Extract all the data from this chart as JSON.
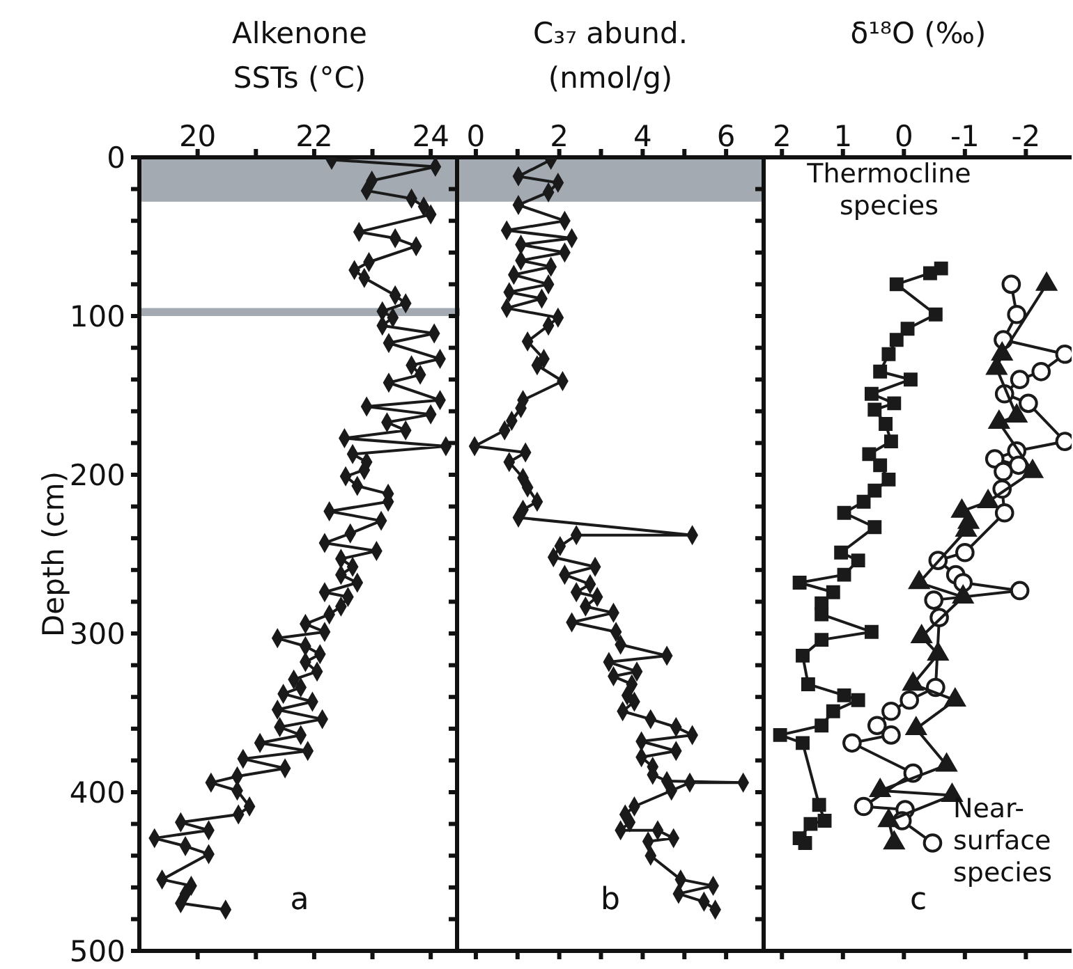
{
  "chart_data": [
    {
      "type": "line",
      "orientation": "horizontal",
      "xlabel": "Alkenone SSTs (°C)",
      "ylabel": "Depth (cm)",
      "xlim": [
        19,
        24.5
      ],
      "xticks": [
        20,
        {
          "value": 21,
          "label": null
        },
        22,
        {
          "value": 23,
          "label": null
        },
        24
      ],
      "ylim": [
        500,
        0
      ],
      "yticks": [
        0,
        {
          "value": 20,
          "label": null
        },
        {
          "value": 40,
          "label": null
        },
        {
          "value": 60,
          "label": null
        },
        {
          "value": 80,
          "label": null
        },
        100,
        {
          "value": 120,
          "label": null
        },
        {
          "value": 140,
          "label": null
        },
        {
          "value": 160,
          "label": null
        },
        {
          "value": 180,
          "label": null
        },
        200,
        {
          "value": 220,
          "label": null
        },
        {
          "value": 240,
          "label": null
        },
        {
          "value": 260,
          "label": null
        },
        {
          "value": 280,
          "label": null
        },
        300,
        {
          "value": 320,
          "label": null
        },
        {
          "value": 340,
          "label": null
        },
        {
          "value": 360,
          "label": null
        },
        {
          "value": 380,
          "label": null
        },
        400,
        {
          "value": 420,
          "label": null
        },
        {
          "value": 440,
          "label": null
        },
        {
          "value": 460,
          "label": null
        },
        {
          "value": 480,
          "label": null
        },
        500
      ],
      "bands": [
        {
          "axis": "y",
          "from": 0,
          "to": 28,
          "color": "#a3aab2"
        },
        {
          "axis": "y",
          "from": 95,
          "to": 100,
          "color": "#a3aab2"
        }
      ],
      "annotations": [
        "a"
      ],
      "series": [
        {
          "color": "#1a1a1a",
          "marker": "diamond",
          "x": [
            1.5,
            5.9,
            14.7,
            21,
            26,
            31,
            36,
            47,
            51,
            56,
            66,
            71,
            76,
            87,
            92,
            97,
            101,
            106,
            111,
            117,
            127,
            131,
            137,
            142,
            153,
            157,
            162,
            167,
            172,
            177,
            182,
            187,
            192,
            197,
            201,
            207,
            212,
            217,
            223,
            229,
            237,
            243,
            248,
            253,
            258,
            263,
            268,
            274,
            277,
            283,
            288,
            294,
            299,
            303,
            308,
            313,
            318,
            324,
            329,
            334,
            338,
            343,
            348,
            354,
            359,
            364,
            369,
            374,
            379,
            385,
            390,
            394,
            399,
            409,
            414,
            419,
            424,
            429,
            434,
            439,
            455,
            459,
            464,
            470,
            474
          ],
          "values": [
            22.3,
            24.08,
            22.99,
            22.9,
            23.67,
            23.88,
            24.0,
            22.77,
            23.39,
            23.75,
            22.94,
            22.69,
            22.86,
            23.39,
            23.57,
            23.17,
            23.35,
            23.17,
            24.06,
            23.28,
            24.16,
            23.67,
            23.82,
            23.28,
            24.16,
            22.9,
            24.0,
            23.25,
            23.57,
            22.52,
            24.26,
            22.66,
            22.9,
            22.86,
            22.54,
            22.74,
            23.27,
            23.27,
            22.26,
            23.15,
            22.62,
            22.18,
            23.07,
            22.46,
            22.66,
            22.46,
            22.74,
            22.18,
            22.58,
            22.46,
            22.26,
            21.85,
            22.18,
            21.37,
            21.85,
            22.1,
            21.85,
            22.05,
            21.65,
            21.77,
            21.47,
            21.97,
            21.37,
            22.14,
            21.41,
            21.77,
            21.07,
            21.89,
            20.78,
            21.5,
            20.68,
            20.23,
            20.68,
            20.89,
            20.7,
            19.71,
            20.19,
            19.26,
            19.79,
            20.19,
            19.39,
            19.89,
            19.79,
            19.71,
            20.48
          ]
        }
      ]
    },
    {
      "type": "line",
      "orientation": "horizontal",
      "xlabel": "C₃₇ abund. (nmol/g)",
      "xlim": [
        -0.45,
        6.9
      ],
      "xticks": [
        0,
        {
          "value": 1,
          "label": null
        },
        2,
        {
          "value": 3,
          "label": null
        },
        4,
        {
          "value": 5,
          "label": null
        },
        6
      ],
      "ylim": [
        500,
        0
      ],
      "yticks": [
        0,
        {
          "value": 20,
          "label": null
        },
        {
          "value": 40,
          "label": null
        },
        {
          "value": 60,
          "label": null
        },
        {
          "value": 80,
          "label": null
        },
        100,
        {
          "value": 120,
          "label": null
        },
        {
          "value": 140,
          "label": null
        },
        {
          "value": 160,
          "label": null
        },
        {
          "value": 180,
          "label": null
        },
        200,
        {
          "value": 220,
          "label": null
        },
        {
          "value": 240,
          "label": null
        },
        {
          "value": 260,
          "label": null
        },
        {
          "value": 280,
          "label": null
        },
        300,
        {
          "value": 320,
          "label": null
        },
        {
          "value": 340,
          "label": null
        },
        {
          "value": 360,
          "label": null
        },
        {
          "value": 380,
          "label": null
        },
        400,
        {
          "value": 420,
          "label": null
        },
        {
          "value": 440,
          "label": null
        },
        {
          "value": 460,
          "label": null
        },
        {
          "value": 480,
          "label": null
        },
        500
      ],
      "tick_labels": "x",
      "bands": [
        {
          "axis": "y",
          "from": 0,
          "to": 28,
          "color": "#a3aab2"
        }
      ],
      "annotations": [
        "b"
      ],
      "series": [
        {
          "color": "#1a1a1a",
          "marker": "diamond",
          "x": [
            1.5,
            12,
            16,
            22,
            30,
            40,
            46,
            51,
            55,
            60,
            65,
            69,
            74,
            80,
            85,
            89,
            95,
            101,
            106,
            116,
            127,
            131,
            141,
            153,
            158,
            166,
            172,
            182,
            186,
            192,
            202,
            208,
            217,
            222,
            227,
            238,
            238,
            245,
            252,
            258,
            263,
            269,
            274,
            277,
            283,
            287,
            293,
            299,
            307,
            314,
            318,
            324,
            327,
            332,
            339,
            343,
            349,
            354,
            359,
            364,
            368,
            374,
            378,
            384,
            389,
            393,
            394,
            394,
            399,
            409,
            414,
            419,
            424,
            424,
            429,
            431,
            440,
            455,
            459,
            464,
            469,
            474
          ],
          "values": [
            1.8,
            1.02,
            1.97,
            1.74,
            1.02,
            2.13,
            0.74,
            2.3,
            1.08,
            2.13,
            1.08,
            1.8,
            0.91,
            1.74,
            0.8,
            1.58,
            0.74,
            1.97,
            1.74,
            1.24,
            1.63,
            1.47,
            2.08,
            1.13,
            1.08,
            0.86,
            0.69,
            -0.03,
            1.19,
            0.8,
            1.13,
            1.24,
            1.47,
            1.13,
            1.02,
            5.19,
            2.41,
            2.02,
            1.86,
            2.86,
            2.13,
            2.74,
            2.41,
            2.91,
            2.63,
            3.3,
            2.3,
            3.36,
            3.47,
            4.58,
            3.19,
            3.86,
            3.3,
            3.74,
            3.63,
            3.8,
            3.52,
            4.19,
            4.8,
            5.19,
            3.97,
            4.8,
            3.97,
            4.24,
            4.24,
            4.58,
            6.41,
            5.13,
            4.69,
            3.8,
            3.58,
            3.69,
            3.47,
            4.36,
            4.74,
            4.13,
            4.19,
            4.91,
            5.69,
            4.86,
            5.47,
            5.74
          ]
        }
      ]
    },
    {
      "type": "line",
      "orientation": "horizontal",
      "xlabel": "δ¹⁸O (‰)",
      "xlim": [
        2.3,
        -2.75
      ],
      "xticks": [
        2,
        1,
        0,
        -1,
        -2
      ],
      "ylim": [
        500,
        0
      ],
      "yticks": [
        0,
        {
          "value": 20,
          "label": null
        },
        {
          "value": 40,
          "label": null
        },
        {
          "value": 60,
          "label": null
        },
        {
          "value": 80,
          "label": null
        },
        100,
        {
          "value": 120,
          "label": null
        },
        {
          "value": 140,
          "label": null
        },
        {
          "value": 160,
          "label": null
        },
        {
          "value": 180,
          "label": null
        },
        200,
        {
          "value": 220,
          "label": null
        },
        {
          "value": 240,
          "label": null
        },
        {
          "value": 260,
          "label": null
        },
        {
          "value": 280,
          "label": null
        },
        300,
        {
          "value": 320,
          "label": null
        },
        {
          "value": 340,
          "label": null
        },
        {
          "value": 360,
          "label": null
        },
        {
          "value": 380,
          "label": null
        },
        400,
        {
          "value": 420,
          "label": null
        },
        {
          "value": 440,
          "label": null
        },
        {
          "value": 460,
          "label": null
        },
        {
          "value": 480,
          "label": null
        },
        500
      ],
      "tick_labels": "x",
      "annotations": [
        "c",
        "Thermocline species",
        "Near-surface species"
      ],
      "series": [
        {
          "color": "#1a1a1a",
          "marker": "square",
          "x": [
            70,
            73,
            80,
            99,
            108,
            115,
            124,
            135,
            140,
            149,
            155,
            159,
            168,
            179,
            187,
            194,
            203,
            210,
            217,
            224,
            233,
            249,
            254,
            263,
            268,
            274,
            281,
            288,
            299,
            304,
            314,
            332,
            339,
            342,
            349,
            358,
            364,
            369,
            408,
            418,
            420,
            429,
            432
          ],
          "values": [
            -0.61,
            -0.43,
            0.12,
            -0.52,
            -0.06,
            0.12,
            0.25,
            0.39,
            -0.11,
            0.53,
            0.16,
            0.48,
            0.3,
            0.21,
            0.57,
            0.39,
            0.25,
            0.48,
            0.66,
            0.98,
            0.48,
            1.03,
            0.75,
            0.98,
            1.71,
            1.16,
            1.35,
            1.35,
            0.53,
            1.35,
            1.66,
            1.57,
            0.98,
            0.75,
            1.16,
            1.35,
            2.03,
            1.66,
            1.39,
            1.3,
            1.53,
            1.71,
            1.62
          ]
        },
        {
          "color": "#1a1a1a",
          "marker": "circle",
          "x": [
            80,
            99,
            115,
            124,
            135,
            140,
            149,
            155,
            179,
            185,
            190,
            194,
            198,
            209,
            224,
            249,
            254,
            263,
            268,
            273,
            279,
            290,
            334,
            342,
            349,
            358,
            364,
            369,
            388,
            409,
            411,
            418,
            432
          ],
          "values": [
            -1.76,
            -1.85,
            -1.63,
            -2.64,
            -2.25,
            -1.9,
            -1.65,
            -2.04,
            -2.64,
            -1.85,
            -1.49,
            -1.88,
            -1.63,
            -1.61,
            -1.65,
            -1.0,
            -0.56,
            -0.85,
            -0.97,
            -1.9,
            -0.49,
            -0.58,
            -0.52,
            -0.09,
            0.21,
            0.44,
            0.21,
            0.85,
            -0.15,
            0.66,
            -0.02,
            0.03,
            -0.47
          ]
        },
        {
          "color": "#1a1a1a",
          "marker": "triangle",
          "x": [
            80,
            124,
            133,
            163,
            167,
            198,
            217,
            223,
            230,
            235,
            268,
            277,
            302,
            313,
            332,
            342,
            360,
            383,
            399,
            402,
            418,
            432
          ],
          "values": [
            -2.34,
            -1.61,
            -1.52,
            -1.85,
            -1.56,
            -2.11,
            -1.38,
            -0.95,
            -1.06,
            -1.02,
            -0.25,
            -0.97,
            -0.29,
            -0.56,
            -0.15,
            -0.84,
            -0.2,
            -0.7,
            0.39,
            -0.79,
            0.25,
            0.16
          ]
        }
      ]
    }
  ]
}
